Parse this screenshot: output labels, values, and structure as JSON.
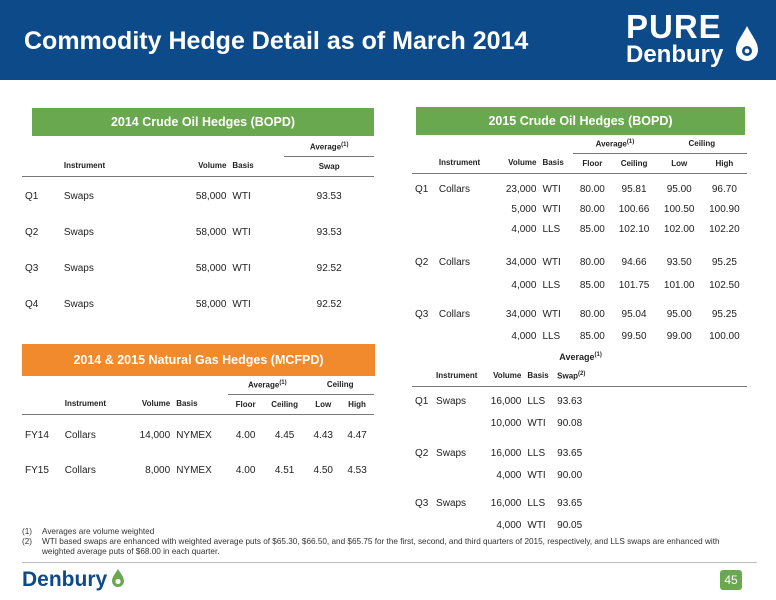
{
  "title": "Commodity Hedge Detail as of March 2014",
  "logo": {
    "top": "PURE",
    "bottom": "Denbury"
  },
  "crude2014": {
    "heading": "2014 Crude Oil Hedges (BOPD)",
    "group": "Average",
    "group_sup": "(1)",
    "cols": [
      "Instrument",
      "Volume",
      "Basis",
      "Swap"
    ],
    "rows": [
      {
        "q": "Q1",
        "inst": "Swaps",
        "vol": "58,000",
        "basis": "WTI",
        "swap": "93.53"
      },
      {
        "q": "Q2",
        "inst": "Swaps",
        "vol": "58,000",
        "basis": "WTI",
        "swap": "93.53"
      },
      {
        "q": "Q3",
        "inst": "Swaps",
        "vol": "58,000",
        "basis": "WTI",
        "swap": "92.52"
      },
      {
        "q": "Q4",
        "inst": "Swaps",
        "vol": "58,000",
        "basis": "WTI",
        "swap": "92.52"
      }
    ]
  },
  "crude2015": {
    "heading": "2015 Crude Oil Hedges (BOPD)",
    "group1": "Average",
    "group1_sup": "(1)",
    "group2": "Ceiling",
    "cols": [
      "Instrument",
      "Volume",
      "Basis",
      "Floor",
      "Ceiling",
      "Low",
      "High"
    ],
    "rows": [
      {
        "q": "Q1",
        "inst": "Collars",
        "vol": "23,000",
        "basis": "WTI",
        "floor": "80.00",
        "ceil": "95.81",
        "low": "95.00",
        "high": "96.70"
      },
      {
        "q": "",
        "inst": "",
        "vol": "5,000",
        "basis": "WTI",
        "floor": "80.00",
        "ceil": "100.66",
        "low": "100.50",
        "high": "100.90"
      },
      {
        "q": "",
        "inst": "",
        "vol": "4,000",
        "basis": "LLS",
        "floor": "85.00",
        "ceil": "102.10",
        "low": "102.00",
        "high": "102.20"
      },
      {
        "q": "Q2",
        "inst": "Collars",
        "vol": "34,000",
        "basis": "WTI",
        "floor": "80.00",
        "ceil": "94.66",
        "low": "93.50",
        "high": "95.25"
      },
      {
        "q": "",
        "inst": "",
        "vol": "4,000",
        "basis": "LLS",
        "floor": "85.00",
        "ceil": "101.75",
        "low": "101.00",
        "high": "102.50"
      },
      {
        "q": "Q3",
        "inst": "Collars",
        "vol": "34,000",
        "basis": "WTI",
        "floor": "80.00",
        "ceil": "95.04",
        "low": "95.00",
        "high": "95.25"
      },
      {
        "q": "",
        "inst": "",
        "vol": "4,000",
        "basis": "LLS",
        "floor": "85.00",
        "ceil": "99.50",
        "low": "99.00",
        "high": "100.00"
      }
    ]
  },
  "gas": {
    "heading": "2014 & 2015 Natural Gas Hedges (MCFPD)",
    "group1": "Average",
    "group1_sup": "(1)",
    "group2": "Ceiling",
    "cols": [
      "Instrument",
      "Volume",
      "Basis",
      "Floor",
      "Ceiling",
      "Low",
      "High"
    ],
    "rows": [
      {
        "q": "FY14",
        "inst": "Collars",
        "vol": "14,000",
        "basis": "NYMEX",
        "floor": "4.00",
        "ceil": "4.45",
        "low": "4.43",
        "high": "4.47"
      },
      {
        "q": "FY15",
        "inst": "Collars",
        "vol": "8,000",
        "basis": "NYMEX",
        "floor": "4.00",
        "ceil": "4.51",
        "low": "4.50",
        "high": "4.53"
      }
    ]
  },
  "swaps2015": {
    "group": "Average",
    "group_sup": "(1)",
    "cols": [
      "Instrument",
      "Volume",
      "Basis",
      "Swap"
    ],
    "swap_sup": "(2)",
    "rows": [
      {
        "q": "Q1",
        "inst": "Swaps",
        "vol": "16,000",
        "basis": "LLS",
        "swap": "93.63"
      },
      {
        "q": "",
        "inst": "",
        "vol": "10,000",
        "basis": "WTI",
        "swap": "90.08"
      },
      {
        "q": "Q2",
        "inst": "Swaps",
        "vol": "16,000",
        "basis": "LLS",
        "swap": "93.65"
      },
      {
        "q": "",
        "inst": "",
        "vol": "4,000",
        "basis": "WTI",
        "swap": "90.00"
      },
      {
        "q": "Q3",
        "inst": "Swaps",
        "vol": "16,000",
        "basis": "LLS",
        "swap": "93.65"
      },
      {
        "q": "",
        "inst": "",
        "vol": "4,000",
        "basis": "WTI",
        "swap": "90.05"
      }
    ]
  },
  "footnotes": [
    {
      "n": "(1)",
      "text": "Averages are volume weighted"
    },
    {
      "n": "(2)",
      "text": "WTI based swaps are enhanced with weighted average puts of $65.30, $66.50, and $65.75 for the first, second, and third quarters of 2015, respectively, and LLS swaps are enhanced with weighted average puts of $68.00 in each quarter."
    }
  ],
  "footer": {
    "logo": "Denbury",
    "page": "45"
  },
  "colors": {
    "header": "#0d4a8a",
    "green": "#6aa84f",
    "orange": "#f08a2c"
  }
}
